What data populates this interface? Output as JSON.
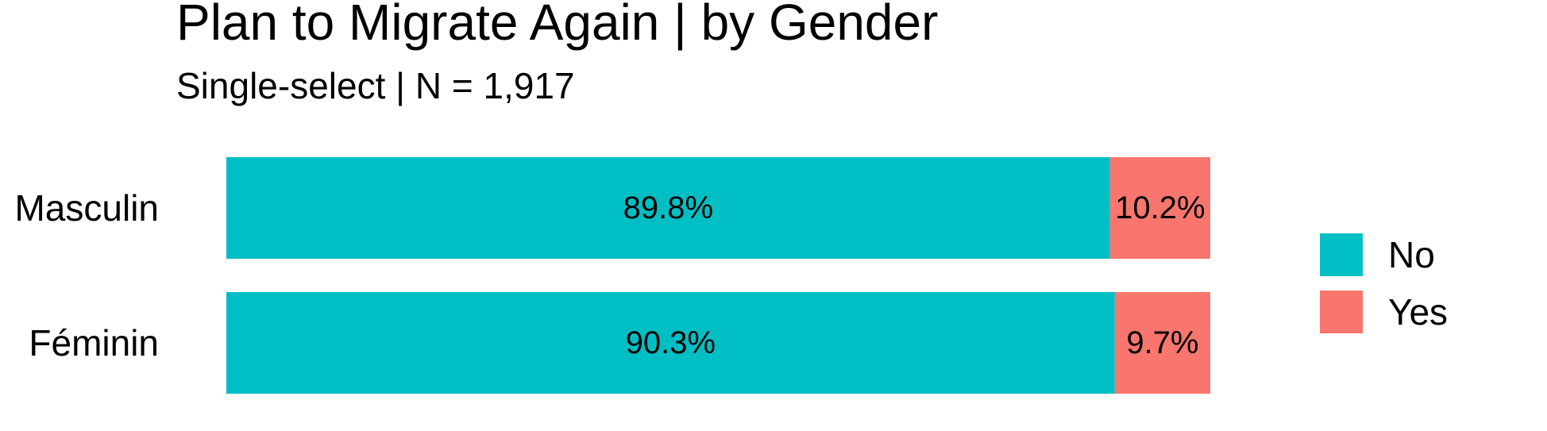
{
  "chart_data": {
    "type": "bar",
    "orientation": "horizontal",
    "stacked": true,
    "title": "Plan to Migrate Again | by Gender",
    "subtitle": "Single-select | N = 1,917",
    "xlabel": "",
    "ylabel": "",
    "xlim": [
      0,
      100
    ],
    "grid": false,
    "legend_position": "right",
    "categories": [
      "Masculin",
      "Féminin"
    ],
    "series": [
      {
        "name": "No",
        "color": "#00BFC4",
        "values": [
          89.8,
          90.3
        ],
        "labels": [
          "89.8%",
          "90.3%"
        ]
      },
      {
        "name": "Yes",
        "color": "#F8766D",
        "values": [
          10.2,
          9.7
        ],
        "labels": [
          "10.2%",
          "9.7%"
        ]
      }
    ]
  }
}
